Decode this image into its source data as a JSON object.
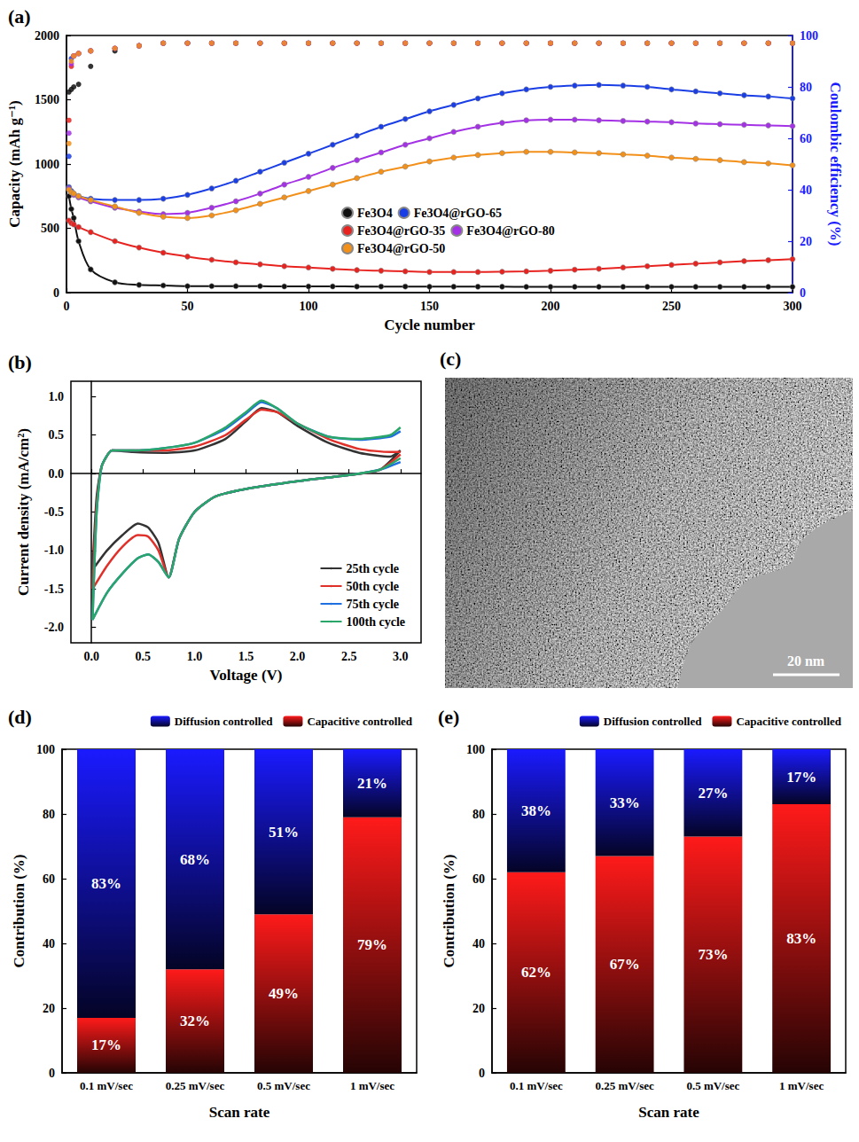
{
  "chart_data": [
    {
      "title": "(a)",
      "type": "line",
      "marker": "circle",
      "grid": false,
      "legend": "center",
      "x_label": "Cycle number",
      "y_label": "Capacity (mAh g⁻¹)",
      "y2_label": "Coulombic efficiency (%)",
      "x": [
        1,
        2,
        3,
        5,
        10,
        20,
        30,
        40,
        50,
        60,
        70,
        80,
        90,
        100,
        110,
        120,
        130,
        140,
        150,
        160,
        170,
        180,
        190,
        200,
        210,
        220,
        230,
        240,
        250,
        260,
        270,
        280,
        290,
        300
      ],
      "xlim": [
        0,
        300
      ],
      "xticks": [
        0,
        50,
        100,
        150,
        200,
        250,
        300
      ],
      "ylim": [
        0,
        2000
      ],
      "yticks": [
        0,
        500,
        1000,
        1500,
        2000
      ],
      "y2lim": [
        0,
        100
      ],
      "y2ticks": [
        0,
        20,
        40,
        60,
        80,
        100
      ],
      "series": [
        {
          "name": "Fe3O4",
          "color": "#111111",
          "values": [
            750,
            650,
            580,
            400,
            180,
            80,
            60,
            55,
            50,
            50,
            50,
            50,
            48,
            48,
            48,
            47,
            47,
            47,
            46,
            46,
            46,
            46,
            45,
            45,
            45,
            45,
            45,
            45,
            45,
            45,
            45,
            45,
            45,
            45
          ]
        },
        {
          "name": "Fe3O4@rGO-65",
          "color": "#1a3ee6",
          "values": [
            820,
            790,
            770,
            750,
            730,
            720,
            720,
            730,
            760,
            810,
            870,
            940,
            1010,
            1080,
            1150,
            1220,
            1290,
            1350,
            1410,
            1460,
            1510,
            1550,
            1580,
            1600,
            1610,
            1615,
            1610,
            1600,
            1580,
            1565,
            1550,
            1535,
            1525,
            1510
          ]
        },
        {
          "name": "Fe3O4@rGO-35",
          "color": "#e8231f",
          "values": [
            560,
            540,
            530,
            510,
            470,
            400,
            350,
            310,
            280,
            255,
            235,
            220,
            205,
            195,
            185,
            175,
            170,
            165,
            160,
            160,
            160,
            162,
            165,
            170,
            178,
            185,
            195,
            205,
            215,
            225,
            235,
            245,
            252,
            260
          ]
        },
        {
          "name": "Fe3O4@rGO-80",
          "color": "#a431e6",
          "values": [
            810,
            780,
            760,
            740,
            710,
            660,
            630,
            610,
            620,
            660,
            710,
            770,
            840,
            900,
            970,
            1030,
            1090,
            1150,
            1200,
            1250,
            1290,
            1320,
            1340,
            1345,
            1345,
            1340,
            1335,
            1330,
            1325,
            1315,
            1310,
            1305,
            1300,
            1295
          ]
        },
        {
          "name": "Fe3O4@rGO-50",
          "color": "#f39019",
          "values": [
            800,
            780,
            770,
            750,
            720,
            670,
            620,
            590,
            580,
            600,
            640,
            690,
            740,
            790,
            840,
            890,
            940,
            980,
            1020,
            1050,
            1070,
            1085,
            1095,
            1095,
            1090,
            1085,
            1075,
            1065,
            1050,
            1040,
            1030,
            1015,
            1005,
            990
          ]
        },
        {
          "name": "Fe3O4",
          "color": "#111111",
          "type": "scatter",
          "axis": "y2",
          "values": [
            78,
            79,
            80,
            81,
            88,
            94,
            96,
            97,
            97,
            97,
            97,
            97,
            97,
            97,
            97,
            97,
            97,
            97,
            97,
            97,
            97,
            97,
            97,
            97,
            97,
            97,
            97,
            97,
            97,
            97,
            97,
            97,
            97,
            97
          ]
        },
        {
          "name": "Fe3O4@rGO-65",
          "color": "#1a3ee6",
          "type": "scatter",
          "axis": "y2",
          "values": [
            53,
            91,
            92,
            93,
            94,
            95,
            96,
            97,
            97,
            97,
            97,
            97,
            97,
            97,
            97,
            97,
            97,
            97,
            97,
            97,
            97,
            97,
            97,
            97,
            97,
            97,
            97,
            97,
            97,
            97,
            97,
            97,
            97,
            97
          ]
        },
        {
          "name": "Fe3O4@rGO-35",
          "color": "#e8231f",
          "type": "scatter",
          "axis": "y2",
          "values": [
            67,
            88,
            92,
            93,
            94,
            95,
            96,
            97,
            97,
            97,
            97,
            97,
            97,
            97,
            97,
            97,
            97,
            97,
            97,
            97,
            97,
            97,
            97,
            97,
            97,
            97,
            97,
            97,
            97,
            97,
            97,
            97,
            97,
            97
          ]
        },
        {
          "name": "Fe3O4@rGO-80",
          "color": "#a431e6",
          "type": "scatter",
          "axis": "y2",
          "values": [
            62,
            89,
            92,
            93,
            94,
            95,
            96,
            97,
            97,
            97,
            97,
            97,
            97,
            97,
            97,
            97,
            97,
            97,
            97,
            97,
            97,
            97,
            97,
            97,
            97,
            97,
            97,
            97,
            97,
            97,
            97,
            97,
            97,
            97
          ]
        },
        {
          "name": "Fe3O4@rGO-50",
          "color": "#f39019",
          "type": "scatter",
          "axis": "y2",
          "values": [
            58,
            90,
            92,
            93,
            94,
            95,
            96,
            97,
            97,
            97,
            97,
            97,
            97,
            97,
            97,
            97,
            97,
            97,
            97,
            97,
            97,
            97,
            97,
            97,
            97,
            97,
            97,
            97,
            97,
            97,
            97,
            97,
            97,
            97
          ]
        }
      ]
    },
    {
      "title": "(b)",
      "type": "line",
      "grid": false,
      "legend": "bottom-right",
      "x_label": "Voltage (V)",
      "y_label": "Current density (mA/cm²)",
      "xlim": [
        -0.2,
        3.2
      ],
      "xticks": [
        {
          "value": 0,
          "label": "0.0"
        },
        0.5,
        {
          "value": 1,
          "label": "1.0"
        },
        1.5,
        {
          "value": 2,
          "label": "2.0"
        },
        2.5,
        {
          "value": 3,
          "label": "3.0"
        }
      ],
      "ylim": [
        -2.2,
        1.2
      ],
      "yticks": [
        {
          "value": -2,
          "label": "-2.0"
        },
        -1.5,
        {
          "value": -1,
          "label": "-1.0"
        },
        -0.5,
        {
          "value": 0,
          "label": "0.0"
        },
        0.5,
        {
          "value": 1,
          "label": "1.0"
        }
      ],
      "x": [
        3,
        2.8,
        2.5,
        2,
        1.5,
        1.2,
        1,
        0.85,
        0.75,
        0.65,
        0.55,
        0.45,
        0.3,
        0.15,
        0.01,
        0.05,
        0.1,
        0.2,
        0.4,
        0.7,
        1,
        1.3,
        1.5,
        1.65,
        1.8,
        2,
        2.3,
        2.6,
        2.9,
        3
      ],
      "series": [
        {
          "name": "25th cycle",
          "color": "#333333",
          "values": [
            0.3,
            0.05,
            -0.02,
            -0.1,
            -0.2,
            -0.3,
            -0.5,
            -0.85,
            -1.35,
            -0.9,
            -0.7,
            -0.65,
            -0.8,
            -1.0,
            -1.25,
            -0.3,
            0.1,
            0.3,
            0.28,
            0.27,
            0.3,
            0.45,
            0.68,
            0.85,
            0.8,
            0.62,
            0.4,
            0.27,
            0.22,
            0.3
          ]
        },
        {
          "name": "50th cycle",
          "color": "#e0302a",
          "values": [
            0.25,
            0.05,
            -0.02,
            -0.1,
            -0.2,
            -0.3,
            -0.5,
            -0.85,
            -1.35,
            -1.0,
            -0.82,
            -0.8,
            -0.95,
            -1.2,
            -1.5,
            -0.4,
            0.1,
            0.3,
            0.3,
            0.3,
            0.35,
            0.5,
            0.7,
            0.83,
            0.8,
            0.65,
            0.45,
            0.32,
            0.28,
            0.28
          ]
        },
        {
          "name": "75th cycle",
          "color": "#1f6fe0",
          "values": [
            0.15,
            0.05,
            -0.02,
            -0.1,
            -0.2,
            -0.3,
            -0.5,
            -0.85,
            -1.35,
            -1.15,
            -1.05,
            -1.1,
            -1.3,
            -1.55,
            -1.9,
            -0.5,
            0.1,
            0.3,
            0.3,
            0.33,
            0.4,
            0.58,
            0.78,
            0.93,
            0.85,
            0.65,
            0.48,
            0.44,
            0.48,
            0.55
          ]
        },
        {
          "name": "100th cycle",
          "color": "#2aa66a",
          "values": [
            0.2,
            0.05,
            -0.02,
            -0.1,
            -0.2,
            -0.3,
            -0.5,
            -0.85,
            -1.35,
            -1.15,
            -1.05,
            -1.1,
            -1.3,
            -1.55,
            -1.9,
            -0.5,
            0.1,
            0.3,
            0.3,
            0.33,
            0.4,
            0.6,
            0.8,
            0.95,
            0.85,
            0.65,
            0.48,
            0.45,
            0.5,
            0.6
          ]
        }
      ]
    },
    {
      "title": "(c)",
      "type": "image",
      "annotations": [
        "20 nm"
      ]
    },
    {
      "title": "(d)",
      "type": "bar",
      "stacked": true,
      "data_labels": true,
      "grid": false,
      "legend": "top",
      "x_label": "Scan rate",
      "y_label": "Contribution (%)",
      "categories": [
        "0.1 mV/sec",
        "0.25 mV/sec",
        "0.5 mV/sec",
        "1 mV/sec"
      ],
      "ylim": [
        0,
        100
      ],
      "yticks": [
        0,
        20,
        40,
        60,
        80,
        100
      ],
      "series": [
        {
          "name": "Capacitive controlled",
          "color": "#ff1a1a",
          "values": [
            17,
            32,
            49,
            79
          ],
          "value_labels": [
            "17%",
            "32%",
            "49%",
            "79%"
          ]
        },
        {
          "name": "Diffusion controlled",
          "color": "#1a1aff",
          "values": [
            83,
            68,
            51,
            21
          ],
          "value_labels": [
            "83%",
            "68%",
            "51%",
            "21%"
          ]
        }
      ]
    },
    {
      "title": "(e)",
      "type": "bar",
      "stacked": true,
      "data_labels": true,
      "grid": false,
      "legend": "top",
      "x_label": "Scan rate",
      "y_label": "Contribution (%)",
      "categories": [
        "0.1 mV/sec",
        "0.25 mV/sec",
        "0.5 mV/sec",
        "1 mV/sec"
      ],
      "ylim": [
        0,
        100
      ],
      "yticks": [
        0,
        20,
        40,
        60,
        80,
        100
      ],
      "series": [
        {
          "name": "Capacitive controlled",
          "color": "#ff1a1a",
          "values": [
            62,
            67,
            73,
            83
          ],
          "value_labels": [
            "62%",
            "67%",
            "73%",
            "83%"
          ]
        },
        {
          "name": "Diffusion controlled",
          "color": "#1a1aff",
          "values": [
            38,
            33,
            27,
            17
          ],
          "value_labels": [
            "38%",
            "33%",
            "27%",
            "17%"
          ]
        }
      ]
    }
  ]
}
